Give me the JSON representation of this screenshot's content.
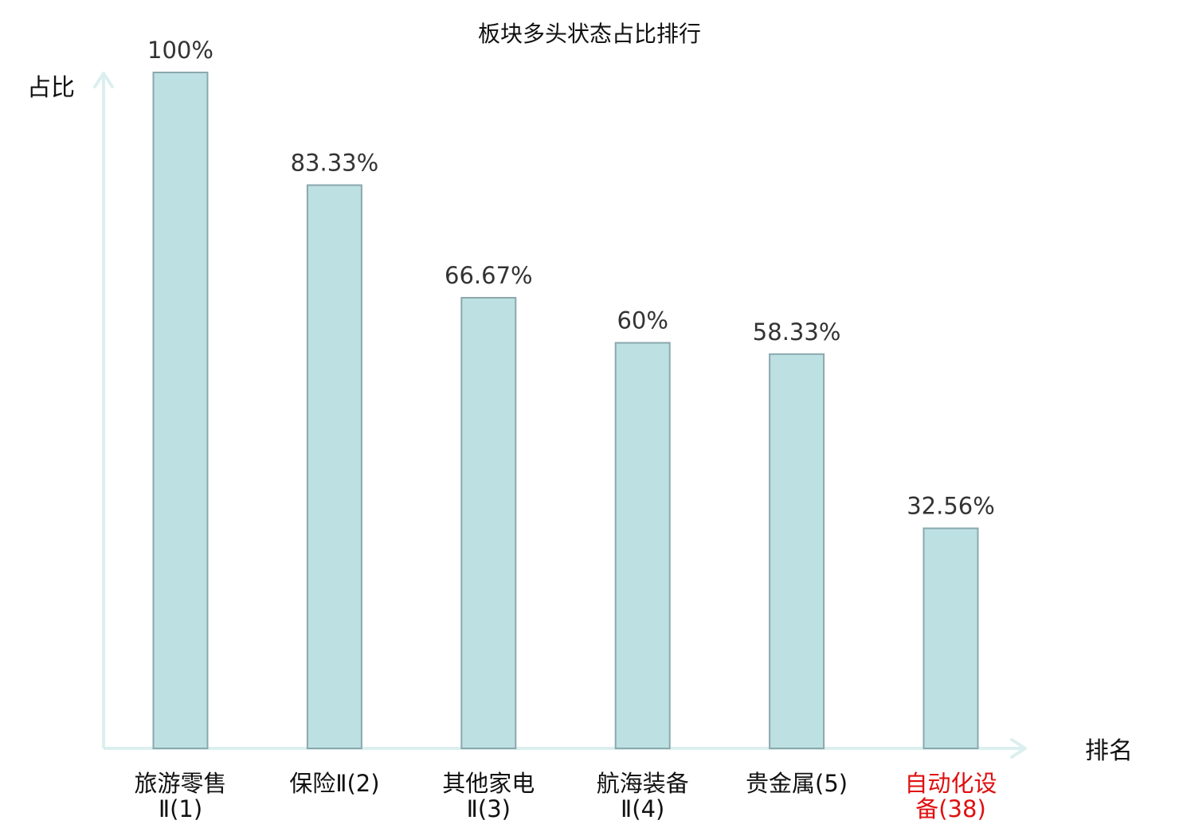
{
  "chart_data": {
    "type": "bar",
    "title": "板块多头状态占比排行",
    "xlabel": "排名",
    "ylabel": "占比",
    "ylim": [
      0,
      100
    ],
    "grid": false,
    "categories": [
      [
        "旅游零售",
        "Ⅱ(1)"
      ],
      [
        "保险Ⅱ(2)"
      ],
      [
        "其他家电",
        "Ⅱ(3)"
      ],
      [
        "航海装备",
        "Ⅱ(4)"
      ],
      [
        "贵金属(5)"
      ],
      [
        "自动化设",
        "备(38)"
      ]
    ],
    "values": [
      100,
      83.33,
      66.67,
      60,
      58.33,
      32.56
    ],
    "value_labels": [
      "100%",
      "83.33%",
      "66.67%",
      "60%",
      "58.33%",
      "32.56%"
    ],
    "highlight_index": 5,
    "colors": {
      "bar_fill": "#bde0e3",
      "bar_stroke": "#8aa8ad",
      "axis": "#dcefef",
      "highlight_text": "#e01010",
      "category_text": "#111111"
    }
  }
}
